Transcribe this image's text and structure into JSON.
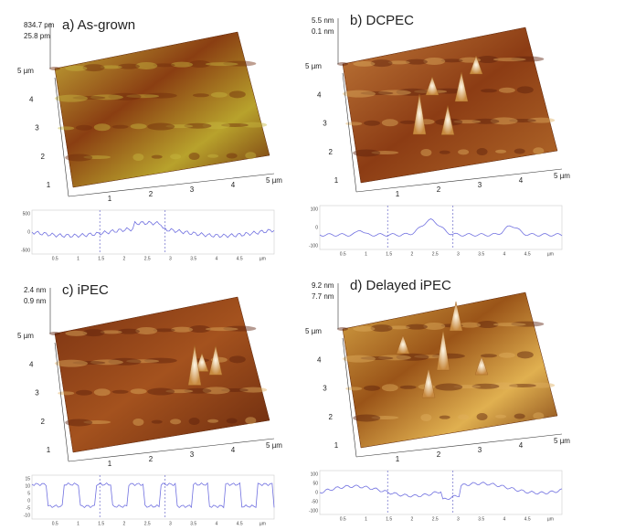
{
  "panels": [
    {
      "title": "a) As-grown",
      "z_labels": [
        "834.7 pm",
        "25.8 pm"
      ],
      "y_axis": [
        "5 µm",
        "4",
        "3",
        "2",
        "1"
      ],
      "x_axis": [
        "1",
        "2",
        "3",
        "4",
        "5 µm"
      ],
      "profile_y": [
        "500",
        "0",
        "-500"
      ],
      "profile_x": [
        "0.5",
        "1",
        "1.5",
        "2",
        "2.5",
        "3",
        "3.5",
        "4",
        "4.5",
        "µm"
      ]
    },
    {
      "title": "b) DCPEC",
      "z_labels": [
        "5.5 nm",
        "0.1 nm"
      ],
      "y_axis": [
        "5 µm",
        "4",
        "3",
        "2",
        "1"
      ],
      "x_axis": [
        "1",
        "2",
        "3",
        "4",
        "5 µm"
      ],
      "profile_y": [
        "100",
        "0",
        "-100"
      ],
      "profile_x": [
        "0.5",
        "1",
        "1.5",
        "2",
        "2.5",
        "3",
        "3.5",
        "4",
        "4.5",
        "µm"
      ]
    },
    {
      "title": "c) iPEC",
      "z_labels": [
        "2.4 nm",
        "0.9 nm"
      ],
      "y_axis": [
        "5 µm",
        "4",
        "3",
        "2",
        "1"
      ],
      "x_axis": [
        "1",
        "2",
        "3",
        "4",
        "5 µm"
      ],
      "profile_y": [
        "15",
        "10",
        "5",
        "0",
        "-5",
        "-10"
      ],
      "profile_x": [
        "0.5",
        "1",
        "1.5",
        "2",
        "2.5",
        "3",
        "3.5",
        "4",
        "4.5",
        "µm"
      ]
    },
    {
      "title": "d) Delayed iPEC",
      "z_labels": [
        "9.2 nm",
        "7.7 nm"
      ],
      "y_axis": [
        "5 µm",
        "4",
        "3",
        "2",
        "1"
      ],
      "x_axis": [
        "1",
        "2",
        "3",
        "4",
        "5 µm"
      ],
      "profile_y": [
        "100",
        "50",
        "0",
        "-50",
        "-100"
      ],
      "profile_x": [
        "0.5",
        "1",
        "1.5",
        "2",
        "2.5",
        "3",
        "3.5",
        "4",
        "4.5",
        "µm"
      ]
    }
  ]
}
